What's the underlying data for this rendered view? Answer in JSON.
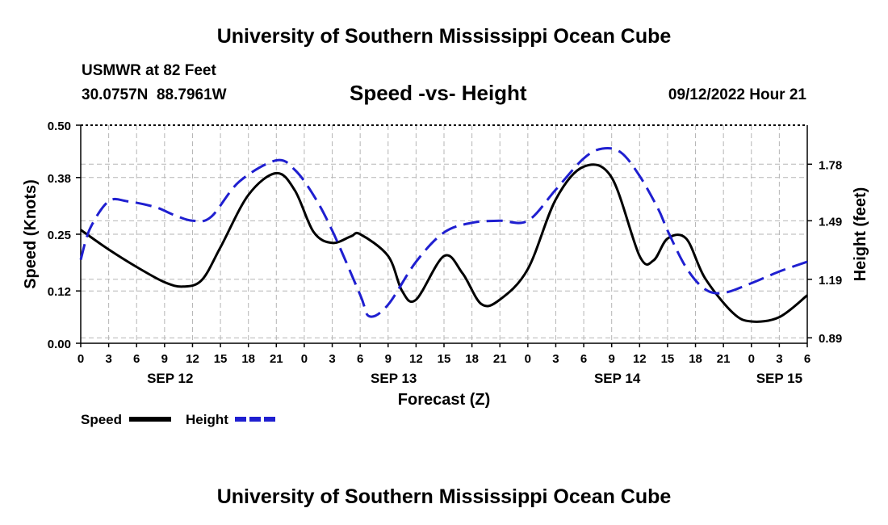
{
  "header": {
    "title": "University of Southern Mississippi Ocean Cube",
    "station": "USMWR at 82 Feet",
    "coords": "30.0757N  88.7961W",
    "subtitle": "Speed -vs- Height",
    "datetime": "09/12/2022 Hour 21",
    "footer_title": "University of Southern Mississippi Ocean Cube"
  },
  "chart_data": {
    "type": "line",
    "title": "Speed -vs- Height",
    "xlabel": "Forecast (Z)",
    "ylabel": "Speed (Knots)",
    "y2label": "Height (feet)",
    "x_range": [
      0,
      78
    ],
    "ylim": [
      0,
      0.5
    ],
    "y2lim": [
      0.862,
      1.98
    ],
    "x_tick_values": [
      0,
      3,
      6,
      9,
      12,
      15,
      18,
      21,
      24,
      27,
      30,
      33,
      36,
      39,
      42,
      45,
      48,
      51,
      54,
      57,
      60,
      63,
      66,
      69,
      72,
      75,
      78
    ],
    "x_tick_labels": [
      "0",
      "3",
      "6",
      "9",
      "12",
      "15",
      "18",
      "21",
      "0",
      "3",
      "6",
      "9",
      "12",
      "15",
      "18",
      "21",
      "0",
      "3",
      "6",
      "9",
      "12",
      "15",
      "18",
      "21",
      "0",
      "3",
      "6"
    ],
    "date_labels": [
      {
        "x": 9.6,
        "label": "SEP 12"
      },
      {
        "x": 33.6,
        "label": "SEP 13"
      },
      {
        "x": 57.6,
        "label": "SEP 14"
      },
      {
        "x": 75,
        "label": "SEP 15"
      }
    ],
    "y_ticks": [
      0.0,
      0.12,
      0.25,
      0.38,
      0.5
    ],
    "y_tick_labels": [
      "0.00",
      "0.12",
      "0.25",
      "0.38",
      "0.50"
    ],
    "y2_ticks": [
      0.89,
      1.19,
      1.49,
      1.78
    ],
    "y2_tick_labels": [
      "0.89",
      "1.19",
      "1.49",
      "1.78"
    ],
    "grid": true,
    "legend": {
      "position": "bottom-left",
      "entries": [
        "Speed",
        "Height"
      ]
    },
    "series": [
      {
        "name": "Speed",
        "axis": "left",
        "color": "#000000",
        "dash": "solid",
        "x": [
          0,
          3,
          6,
          9,
          11,
          13,
          15,
          18,
          21,
          23,
          25,
          27,
          29,
          30,
          33,
          34.5,
          36,
          39,
          41,
          43,
          45,
          48,
          51,
          54,
          57,
          60,
          61.5,
          63,
          65,
          67,
          70,
          72,
          75,
          78
        ],
        "y": [
          0.26,
          0.215,
          0.175,
          0.14,
          0.13,
          0.145,
          0.22,
          0.34,
          0.39,
          0.35,
          0.255,
          0.23,
          0.245,
          0.25,
          0.2,
          0.12,
          0.1,
          0.2,
          0.16,
          0.09,
          0.1,
          0.17,
          0.33,
          0.405,
          0.38,
          0.2,
          0.19,
          0.24,
          0.24,
          0.15,
          0.07,
          0.05,
          0.06,
          0.11
        ]
      },
      {
        "name": "Height",
        "axis": "right",
        "color": "#1f1fd0",
        "dash": "dashed",
        "x": [
          0,
          1,
          3,
          5,
          8,
          10,
          12,
          14,
          17,
          21,
          23,
          25,
          27,
          30,
          31,
          33,
          36,
          39,
          42,
          45,
          48,
          51,
          54,
          56,
          58,
          60,
          62,
          63,
          65,
          67,
          69,
          72,
          75,
          78
        ],
        "y": [
          1.29,
          1.45,
          1.59,
          1.59,
          1.56,
          1.52,
          1.49,
          1.51,
          1.69,
          1.8,
          1.75,
          1.62,
          1.44,
          1.11,
          1.0,
          1.06,
          1.28,
          1.43,
          1.48,
          1.49,
          1.49,
          1.65,
          1.81,
          1.86,
          1.84,
          1.72,
          1.55,
          1.44,
          1.25,
          1.14,
          1.12,
          1.17,
          1.23,
          1.28
        ]
      }
    ]
  }
}
